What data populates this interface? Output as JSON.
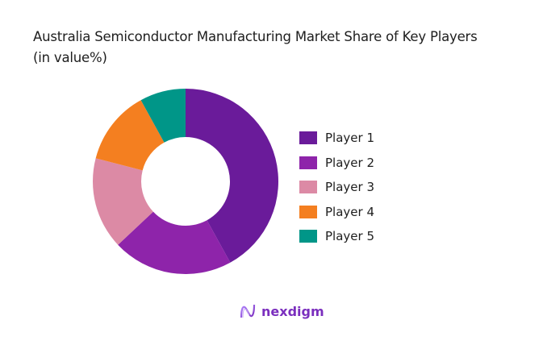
{
  "title_line1": "Australia Semiconductor Manufacturing Market Share of Key Players",
  "title_line2": "(in value%)",
  "brand": "nexdigm",
  "chart_data": {
    "type": "pie",
    "variant": "donut",
    "title": "Australia Semiconductor Manufacturing Market Share of Key Players (in value%)",
    "categories": [
      "Player 1",
      "Player 2",
      "Player 3",
      "Player 4",
      "Player 5"
    ],
    "values": [
      42,
      21,
      16,
      13,
      8
    ],
    "colors": [
      "#6a1b9a",
      "#8e24aa",
      "#dc8aa5",
      "#f47f20",
      "#009688"
    ],
    "legend_position": "right",
    "start_angle": 0,
    "direction": "clockwise"
  },
  "legend": [
    {
      "label": "Player 1",
      "color": "#6a1b9a"
    },
    {
      "label": "Player 2",
      "color": "#8e24aa"
    },
    {
      "label": "Player 3",
      "color": "#dc8aa5"
    },
    {
      "label": "Player 4",
      "color": "#f47f20"
    },
    {
      "label": "Player 5",
      "color": "#009688"
    }
  ]
}
